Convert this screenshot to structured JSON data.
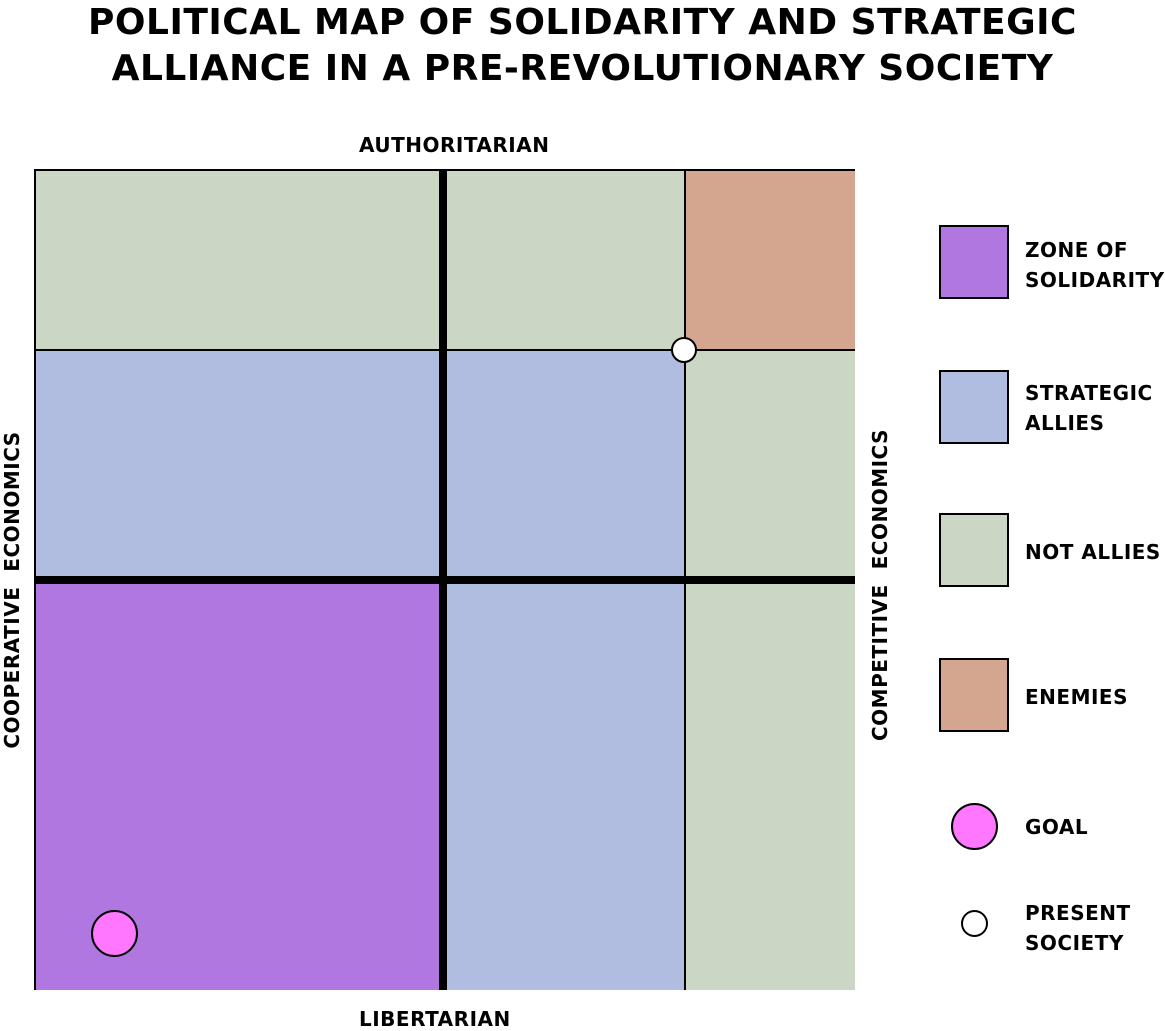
{
  "title": [
    "POLITICAL MAP OF SOLIDARITY AND STRATEGIC",
    "ALLIANCE IN A PRE-REVOLUTIONARY SOCIETY"
  ],
  "axes": {
    "top": "AUTHORITARIAN",
    "bottom": "LIBERTARIAN",
    "left": "COOPERATIVE  ECONOMICS",
    "right": "COMPETITIVE  ECONOMICS"
  },
  "colors": {
    "solidarity": "#b077e0",
    "allies": "#b0bde0",
    "not_allies": "#ccd6c5",
    "enemies": "#d4a690",
    "goal": "#ff77ff",
    "present": "#ffffff"
  },
  "legend": [
    {
      "label1": "ZONE OF",
      "label2": "SOLIDARITY"
    },
    {
      "label1": "STRATEGIC",
      "label2": "ALLIES"
    },
    {
      "label1": "NOT ALLIES"
    },
    {
      "label1": "ENEMIES"
    },
    {
      "label1": "GOAL"
    },
    {
      "label1": "PRESENT",
      "label2": "SOCIETY"
    }
  ]
}
